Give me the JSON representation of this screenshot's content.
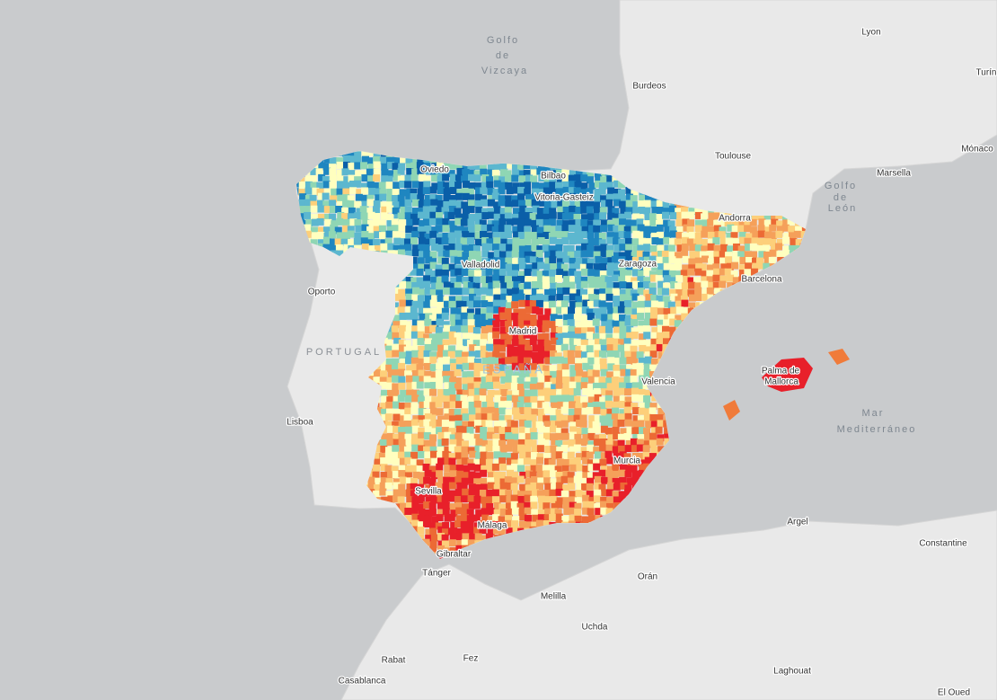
{
  "map": {
    "water_labels": {
      "golfo_vizcaya": [
        "Golfo",
        "de",
        "Vizcaya"
      ],
      "golfo_leon": [
        "Golfo",
        "de",
        "León"
      ],
      "mar_mediterraneo": [
        "Mar",
        "Mediterráneo"
      ]
    },
    "country_labels": [
      "PORTUGAL",
      "ESPAÑA"
    ],
    "places": [
      "Lyon",
      "Burdeos",
      "Turín",
      "Toulouse",
      "Mónaco",
      "Marsella",
      "Andorra",
      "Oviedo",
      "Bilbao",
      "Vitoria-Gasteiz",
      "Valladolid",
      "Zaragoza",
      "Barcelona",
      "Oporto",
      "Madrid",
      "Palma de",
      "Mallorca",
      "Valencia",
      "Lisboa",
      "Murcia",
      "Sevilla",
      "Málaga",
      "Gibraltar",
      "Argel",
      "Constantine",
      "Tánger",
      "Orán",
      "Melilla",
      "Uchda",
      "Rabat",
      "Fez",
      "Casablanca",
      "Laghouat",
      "El Oued"
    ]
  }
}
